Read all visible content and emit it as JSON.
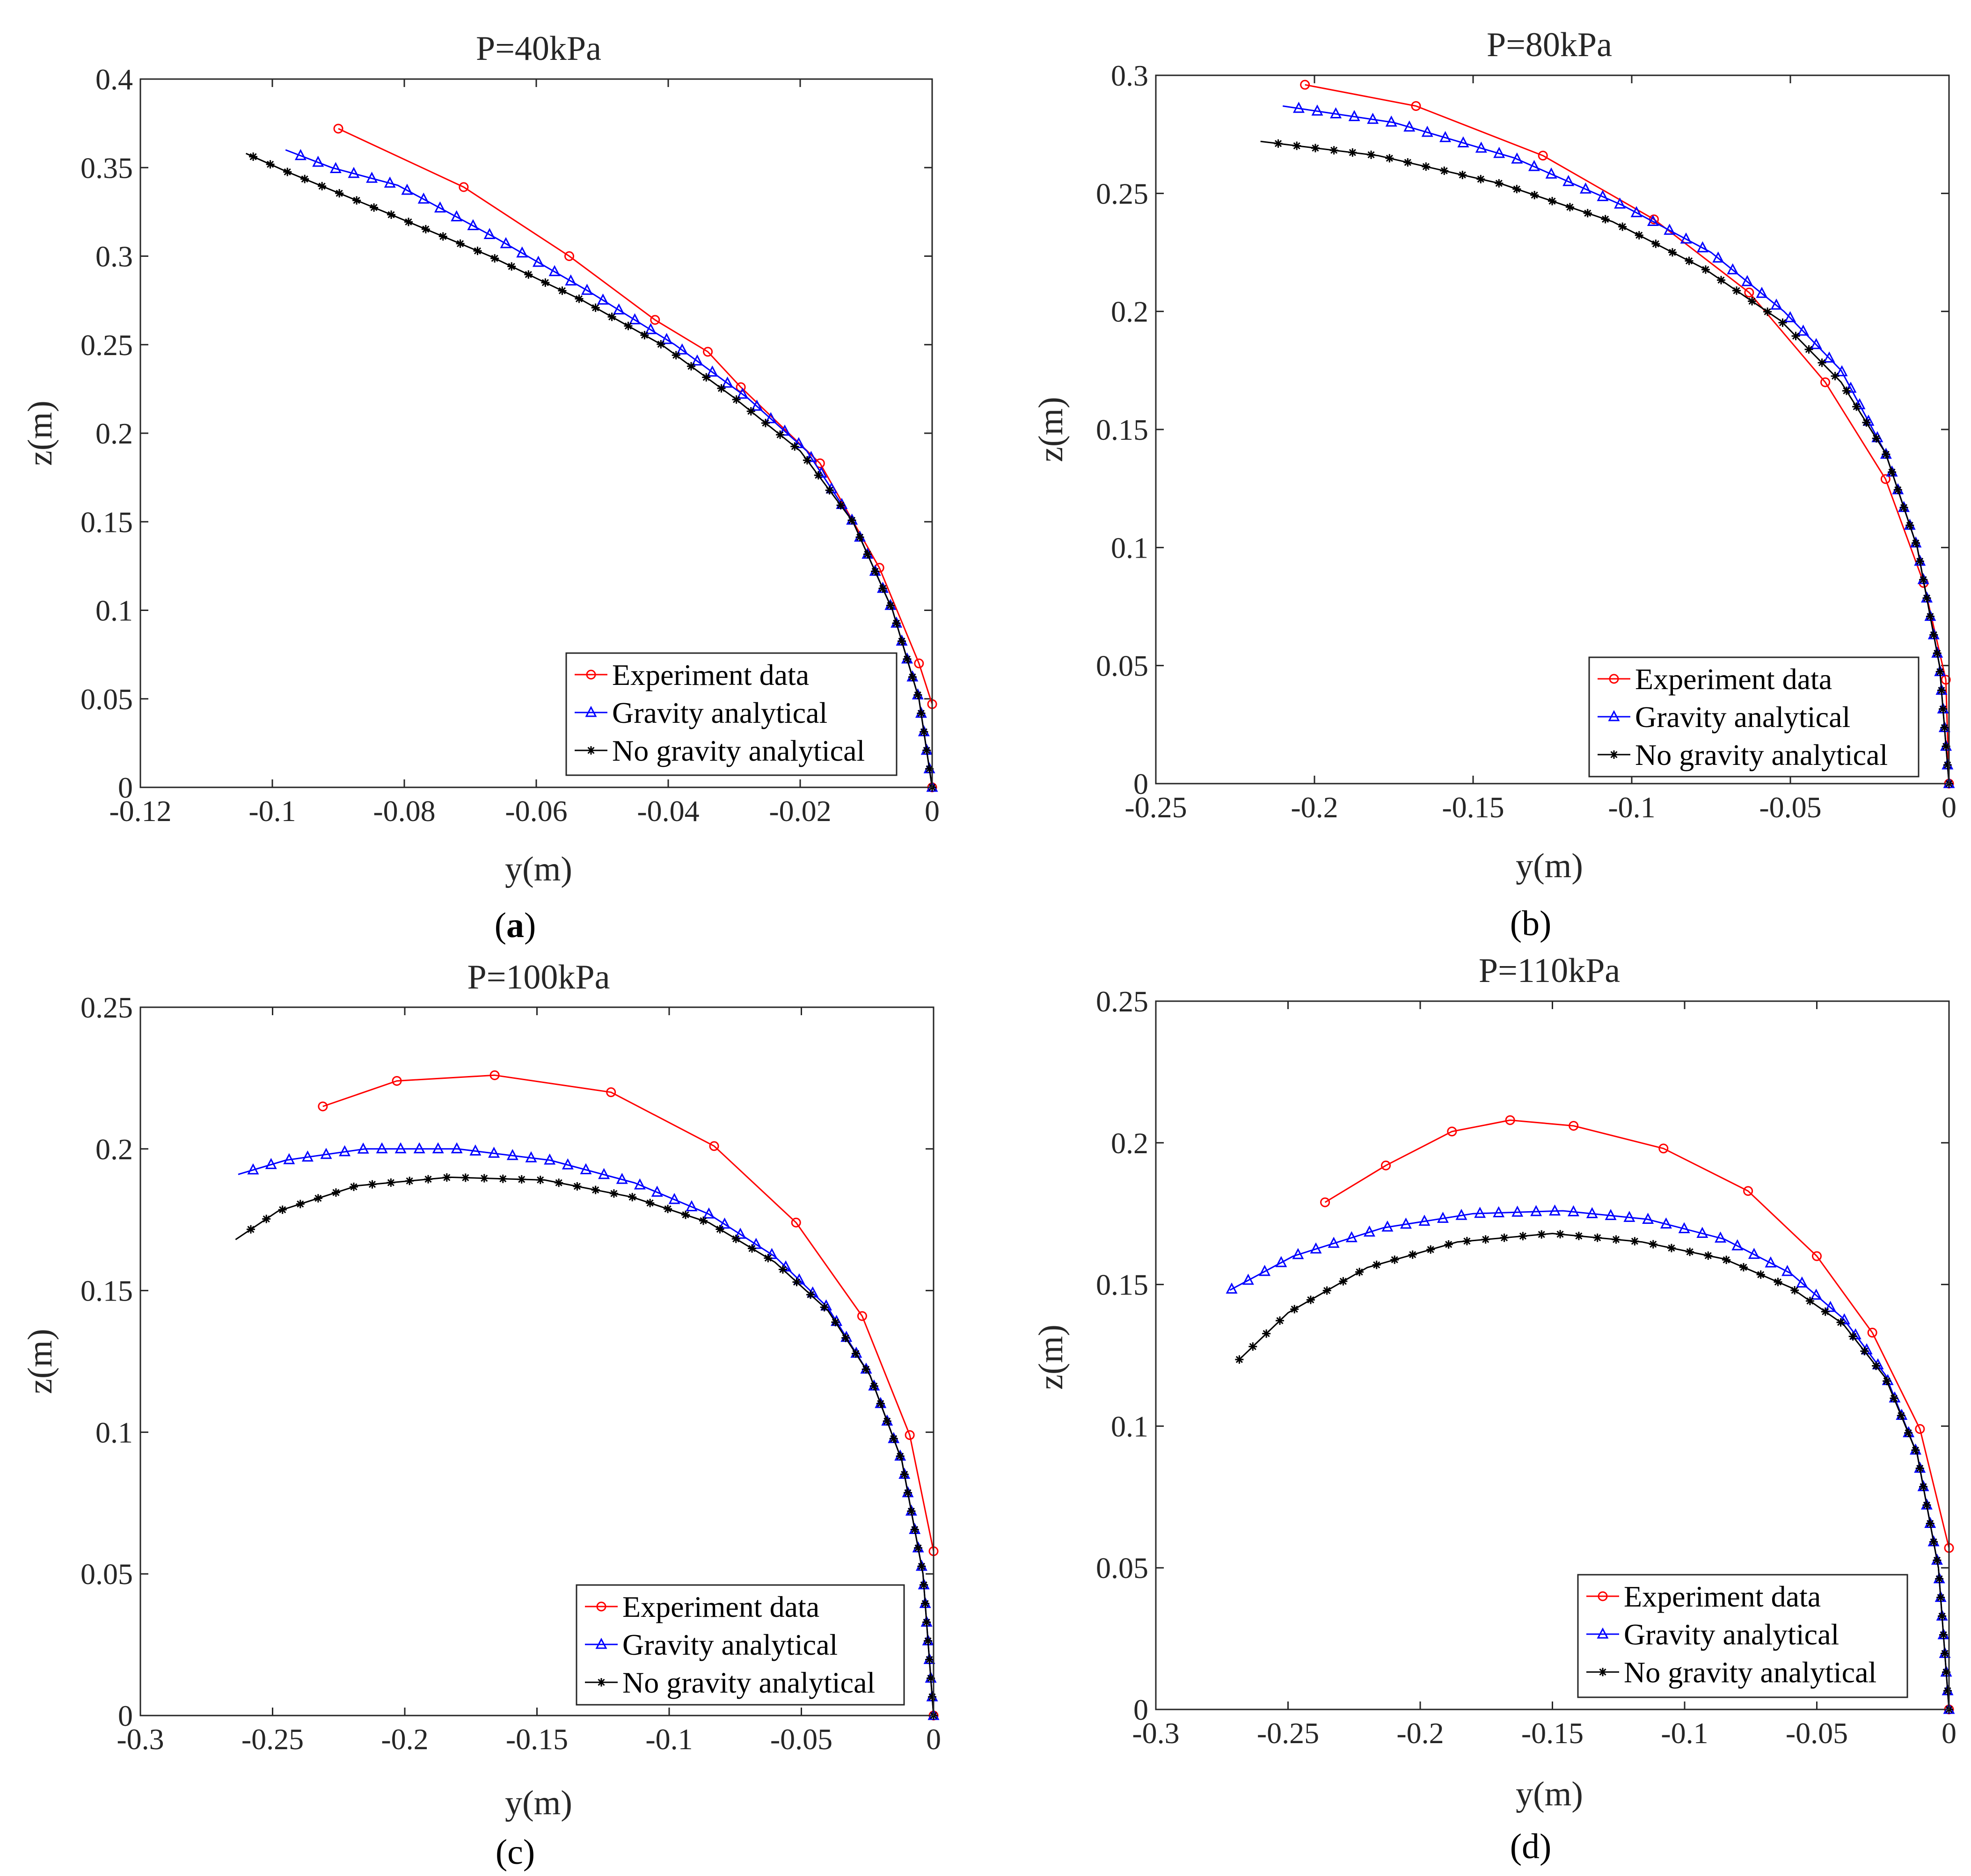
{
  "figure": {
    "legend_labels": [
      "Experiment data",
      "Gravity analytical",
      "No gravity analytical"
    ],
    "series_colors": {
      "Experiment data": "#ff0000",
      "Gravity analytical": "#0000ff",
      "No gravity analytical": "#000000"
    },
    "series_markers": {
      "Experiment data": "circle",
      "Gravity analytical": "triangle",
      "No gravity analytical": "asterisk"
    }
  },
  "chart_data": [
    {
      "type": "line",
      "panel": "a",
      "caption": "(a)",
      "caption_prefix": "(",
      "caption_letter": "a",
      "caption_suffix": ")",
      "title": "P=40kPa",
      "xlabel": "y(m)",
      "ylabel": "z(m)",
      "xlim": [
        -0.12,
        0
      ],
      "ylim": [
        0,
        0.4
      ],
      "xticks": [
        -0.12,
        -0.1,
        -0.08,
        -0.06,
        -0.04,
        -0.02,
        0
      ],
      "yticks": [
        0,
        0.05,
        0.1,
        0.15,
        0.2,
        0.25,
        0.3,
        0.35,
        0.4
      ],
      "xtick_labels": [
        "-0.12",
        "-0.1",
        "-0.08",
        "-0.06",
        "-0.04",
        "-0.02",
        "0"
      ],
      "ytick_labels": [
        "0",
        "0.05",
        "0.1",
        "0.15",
        "0.2",
        "0.25",
        "0.3",
        "0.35",
        "0.4"
      ],
      "legend": [
        "Experiment data",
        "Gravity analytical",
        "No gravity analytical"
      ],
      "series": [
        {
          "name": "Experiment data",
          "x": [
            0,
            0,
            -0.002,
            -0.008,
            -0.017,
            -0.029,
            -0.034,
            -0.042,
            -0.055,
            -0.071,
            -0.09
          ],
          "y": [
            0,
            0.047,
            0.07,
            0.124,
            0.183,
            0.226,
            0.246,
            0.264,
            0.3,
            0.339,
            0.372
          ]
        },
        {
          "name": "Gravity analytical",
          "x": [
            0,
            -0.002,
            -0.006,
            -0.012,
            -0.019,
            -0.028,
            -0.039,
            -0.052,
            -0.066,
            -0.081,
            -0.091,
            -0.098
          ],
          "y": [
            0,
            0.05,
            0.1,
            0.15,
            0.19,
            0.22,
            0.25,
            0.28,
            0.31,
            0.34,
            0.35,
            0.36
          ]
        },
        {
          "name": "No gravity analytical",
          "x": [
            0,
            -0.002,
            -0.006,
            -0.012,
            -0.02,
            -0.03,
            -0.041,
            -0.053,
            -0.067,
            -0.083,
            -0.098,
            -0.104
          ],
          "y": [
            0,
            0.05,
            0.1,
            0.15,
            0.19,
            0.22,
            0.25,
            0.275,
            0.3,
            0.325,
            0.348,
            0.358
          ]
        }
      ]
    },
    {
      "type": "line",
      "panel": "b",
      "caption": "(b)",
      "caption_prefix": "(",
      "caption_letter": "b",
      "caption_suffix": ")",
      "title": "P=80kPa",
      "xlabel": "y(m)",
      "ylabel": "z(m)",
      "xlim": [
        -0.25,
        0
      ],
      "ylim": [
        0,
        0.3
      ],
      "xticks": [
        -0.25,
        -0.2,
        -0.15,
        -0.1,
        -0.05,
        0
      ],
      "yticks": [
        0,
        0.05,
        0.1,
        0.15,
        0.2,
        0.25,
        0.3
      ],
      "xtick_labels": [
        "-0.25",
        "-0.2",
        "-0.15",
        "-0.1",
        "-0.05",
        "0"
      ],
      "ytick_labels": [
        "0",
        "0.05",
        "0.1",
        "0.15",
        "0.2",
        "0.25",
        "0.3"
      ],
      "legend": [
        "Experiment data",
        "Gravity analytical",
        "No gravity analytical"
      ],
      "series": [
        {
          "name": "Experiment data",
          "x": [
            0,
            -0.001,
            -0.008,
            -0.02,
            -0.039,
            -0.063,
            -0.093,
            -0.128,
            -0.168,
            -0.203
          ],
          "y": [
            0,
            0.044,
            0.085,
            0.129,
            0.17,
            0.208,
            0.239,
            0.266,
            0.287,
            0.296
          ]
        },
        {
          "name": "Gravity analytical",
          "x": [
            0,
            -0.003,
            -0.01,
            -0.02,
            -0.034,
            -0.052,
            -0.075,
            -0.103,
            -0.137,
            -0.175,
            -0.21
          ],
          "y": [
            0,
            0.05,
            0.1,
            0.14,
            0.175,
            0.2,
            0.225,
            0.245,
            0.265,
            0.28,
            0.287
          ]
        },
        {
          "name": "No gravity analytical",
          "x": [
            0,
            -0.003,
            -0.01,
            -0.02,
            -0.034,
            -0.053,
            -0.077,
            -0.106,
            -0.141,
            -0.18,
            -0.217
          ],
          "y": [
            0,
            0.05,
            0.1,
            0.14,
            0.17,
            0.196,
            0.218,
            0.238,
            0.254,
            0.266,
            0.272
          ]
        }
      ]
    },
    {
      "type": "line",
      "panel": "c",
      "caption": "(c)",
      "caption_prefix": "(",
      "caption_letter": "c",
      "caption_suffix": ")",
      "title": "P=100kPa",
      "xlabel": "y(m)",
      "ylabel": "z(m)",
      "xlim": [
        -0.3,
        0
      ],
      "ylim": [
        0,
        0.25
      ],
      "xticks": [
        -0.3,
        -0.25,
        -0.2,
        -0.15,
        -0.1,
        -0.05,
        0
      ],
      "yticks": [
        0,
        0.05,
        0.1,
        0.15,
        0.2,
        0.25
      ],
      "xtick_labels": [
        "-0.3",
        "-0.25",
        "-0.2",
        "-0.15",
        "-0.1",
        "-0.05",
        "0"
      ],
      "ytick_labels": [
        "0",
        "0.05",
        "0.1",
        "0.15",
        "0.2",
        "0.25"
      ],
      "legend": [
        "Experiment data",
        "Gravity analytical",
        "No gravity analytical"
      ],
      "series": [
        {
          "name": "Experiment data",
          "x": [
            0,
            0,
            -0.009,
            -0.027,
            -0.052,
            -0.083,
            -0.122,
            -0.166,
            -0.203,
            -0.231
          ],
          "y": [
            0,
            0.058,
            0.099,
            0.141,
            0.174,
            0.201,
            0.22,
            0.226,
            0.224,
            0.215
          ]
        },
        {
          "name": "Gravity analytical",
          "x": [
            0,
            -0.004,
            -0.012,
            -0.024,
            -0.04,
            -0.06,
            -0.085,
            -0.113,
            -0.145,
            -0.18,
            -0.215,
            -0.245,
            -0.263
          ],
          "y": [
            0,
            0.05,
            0.09,
            0.12,
            0.144,
            0.162,
            0.177,
            0.188,
            0.196,
            0.2,
            0.2,
            0.196,
            0.191
          ]
        },
        {
          "name": "No gravity analytical",
          "x": [
            0,
            -0.004,
            -0.012,
            -0.024,
            -0.04,
            -0.06,
            -0.085,
            -0.114,
            -0.147,
            -0.183,
            -0.218,
            -0.248,
            -0.264
          ],
          "y": [
            0,
            0.05,
            0.09,
            0.12,
            0.143,
            0.16,
            0.174,
            0.183,
            0.189,
            0.19,
            0.187,
            0.178,
            0.168
          ]
        }
      ]
    },
    {
      "type": "line",
      "panel": "d",
      "caption": "(d)",
      "caption_prefix": "(",
      "caption_letter": "d",
      "caption_suffix": ")",
      "title": "P=110kPa",
      "xlabel": "y(m)",
      "ylabel": "z(m)",
      "xlim": [
        -0.3,
        0
      ],
      "ylim": [
        0,
        0.25
      ],
      "xticks": [
        -0.3,
        -0.25,
        -0.2,
        -0.15,
        -0.1,
        -0.05,
        0
      ],
      "yticks": [
        0,
        0.05,
        0.1,
        0.15,
        0.2,
        0.25
      ],
      "xtick_labels": [
        "-0.3",
        "-0.25",
        "-0.2",
        "-0.15",
        "-0.1",
        "-0.05",
        "0"
      ],
      "ytick_labels": [
        "0",
        "0.05",
        "0.1",
        "0.15",
        "0.2",
        "0.25"
      ],
      "legend": [
        "Experiment data",
        "Gravity analytical",
        "No gravity analytical"
      ],
      "series": [
        {
          "name": "Experiment data",
          "x": [
            0,
            0,
            -0.011,
            -0.029,
            -0.05,
            -0.076,
            -0.108,
            -0.142,
            -0.166,
            -0.188,
            -0.213,
            -0.236
          ],
          "y": [
            0,
            0.057,
            0.099,
            0.133,
            0.16,
            0.183,
            0.198,
            0.206,
            0.208,
            0.204,
            0.192,
            0.179
          ]
        },
        {
          "name": "Gravity analytical",
          "x": [
            0,
            -0.004,
            -0.012,
            -0.024,
            -0.04,
            -0.06,
            -0.085,
            -0.114,
            -0.146,
            -0.18,
            -0.214,
            -0.248,
            -0.272
          ],
          "y": [
            0,
            0.05,
            0.09,
            0.118,
            0.138,
            0.154,
            0.166,
            0.173,
            0.176,
            0.175,
            0.17,
            0.16,
            0.148
          ]
        },
        {
          "name": "No gravity analytical",
          "x": [
            0,
            -0.004,
            -0.012,
            -0.024,
            -0.04,
            -0.06,
            -0.085,
            -0.116,
            -0.15,
            -0.186,
            -0.22,
            -0.25,
            -0.269
          ],
          "y": [
            0,
            0.05,
            0.09,
            0.117,
            0.136,
            0.149,
            0.159,
            0.165,
            0.168,
            0.165,
            0.156,
            0.14,
            0.123
          ]
        }
      ]
    }
  ]
}
